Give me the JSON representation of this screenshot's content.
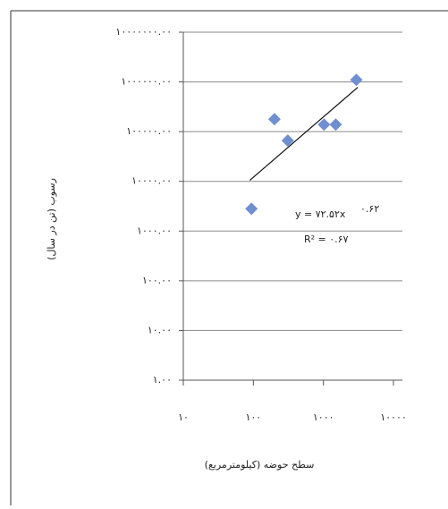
{
  "chart_data": {
    "type": "scatter",
    "x_label": "سطح حوضه (کیلومترمربع)",
    "y_label": "رسوب (تن در سال)",
    "equation": "y = ۷۲.۵۲x",
    "exponent": "۰.۶۲",
    "r2": "R² = ۰.۶۷",
    "x": [
      94,
      200,
      310,
      1020,
      1500,
      2950
    ],
    "y": [
      2800,
      178000,
      66000,
      139000,
      139000,
      1100000
    ],
    "color": "#6f8fd0",
    "trend": {
      "x": [
        89,
        3100
      ],
      "y": [
        10500,
        780000
      ]
    },
    "xlog": true,
    "ylog": true,
    "grid": true,
    "xlim": [
      10,
      10000
    ],
    "xticks": [
      {
        "value": 10,
        "label": "۱۰"
      },
      {
        "value": 100,
        "label": "۱۰۰"
      },
      {
        "value": 1000,
        "label": "۱۰۰۰"
      },
      {
        "value": 10000,
        "label": "۱۰۰۰۰"
      }
    ],
    "ylim": [
      1,
      10000000
    ],
    "yticks": [
      {
        "value": 1,
        "label": "۱.۰۰"
      },
      {
        "value": 10,
        "label": "۱۰.۰۰"
      },
      {
        "value": 100,
        "label": "۱۰۰.۰۰"
      },
      {
        "value": 1000,
        "label": "۱۰۰۰.۰۰"
      },
      {
        "value": 10000,
        "label": "۱۰۰۰۰.۰۰"
      },
      {
        "value": 100000,
        "label": "۱۰۰۰۰۰.۰۰"
      },
      {
        "value": 1000000,
        "label": "۱۰۰۰۰۰۰.۰۰"
      },
      {
        "value": 10000000,
        "label": "۱۰۰۰۰۰۰۰.۰۰"
      }
    ]
  }
}
